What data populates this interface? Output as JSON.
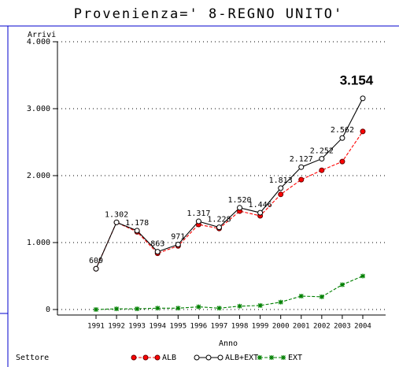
{
  "chart_data": {
    "type": "line",
    "title": "Provenienza=' 8-REGNO UNITO'",
    "y_label": "Arrivi",
    "x_label": "Anno",
    "legend_title": "Settore",
    "categories": [
      "1991",
      "1992",
      "1993",
      "1994",
      "1995",
      "1996",
      "1997",
      "1998",
      "1999",
      "2000",
      "2001",
      "2002",
      "2003",
      "2004"
    ],
    "series": [
      {
        "name": "ALB",
        "color": "#ff0000",
        "marker": "filled-circle",
        "dash": true,
        "values": [
          609,
          1302,
          1160,
          840,
          950,
          1270,
          1210,
          1470,
          1400,
          1720,
          1940,
          2080,
          2210,
          2660
        ]
      },
      {
        "name": "ALB+EXT",
        "color": "#000000",
        "marker": "open-circle",
        "dash": false,
        "values": [
          609,
          1302,
          1178,
          863,
          971,
          1317,
          1228,
          1520,
          1446,
          1813,
          2127,
          2252,
          2562,
          3154
        ],
        "value_labels": [
          "609",
          "1.302",
          "1.178",
          "863",
          "971",
          "1.317",
          "1.228",
          "1.520",
          "1.446",
          "1.813",
          "2.127",
          "2.252",
          "2.562",
          "3.154"
        ]
      },
      {
        "name": "EXT",
        "color": "#008000",
        "marker": "star",
        "dash": true,
        "values": [
          0,
          10,
          10,
          20,
          20,
          40,
          20,
          50,
          60,
          110,
          200,
          190,
          370,
          500
        ]
      }
    ],
    "ylim": [
      0,
      4000
    ],
    "yticks": [
      0,
      {
        "value": 1000,
        "label": "1.000"
      },
      {
        "value": 2000,
        "label": "2.000"
      },
      {
        "value": 3000,
        "label": "3.000"
      },
      {
        "value": 4000,
        "label": "4.000"
      }
    ],
    "grid": true,
    "legend": "bottom"
  }
}
